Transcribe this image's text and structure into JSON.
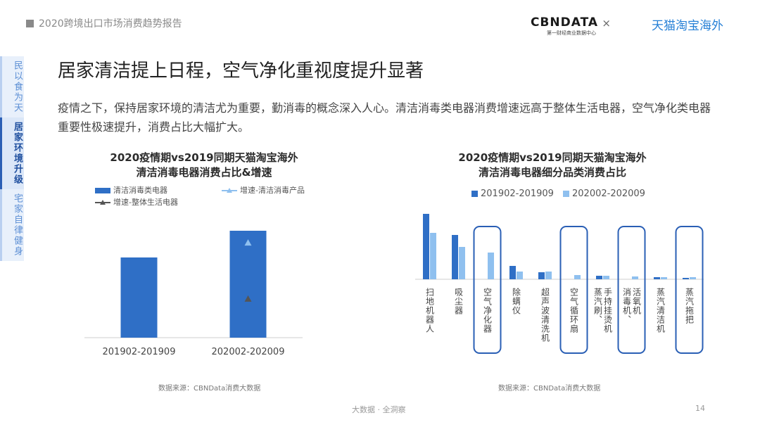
{
  "header": {
    "report_title": "2020跨境出口市场消费趋势报告"
  },
  "brand": {
    "primary": "CBNDATA",
    "primary_sub": "第一财经商业数据中心",
    "separator": "×",
    "partner": "天猫淘宝海外"
  },
  "side_nav": {
    "items": [
      {
        "label": "民以食为天",
        "active": false
      },
      {
        "label": "居家环境升级",
        "active": true
      },
      {
        "label": "宅家自律健身",
        "active": false
      }
    ]
  },
  "headline": "居家清洁提上日程，空气净化重视度提升显著",
  "description": "疫情之下，保持居家环境的清洁尤为重要，勤消毒的概念深入人心。清洁消毒类电器消费增速远高于整体生活电器，空气净化类电器重要性极速提升，消费占比大幅扩大。",
  "colors": {
    "dark_blue": "#2f6fc6",
    "light_blue": "#8fc0ef",
    "gray_tri": "#555555",
    "highlight_border": "#2a5fb5"
  },
  "chart_data": [
    {
      "type": "bar",
      "title_line1": "2020疫情期vs2019同期天猫淘宝海外",
      "title_line2": "清洁消毒电器消费占比&增速",
      "categories": [
        "201902-201909",
        "202002-202009"
      ],
      "series": [
        {
          "name": "清洁消毒类电器",
          "type": "bar",
          "values": [
            0.6,
            0.8
          ],
          "color": "#2f6fc6"
        },
        {
          "name": "增速-清洁消毒产品",
          "type": "marker",
          "values": [
            null,
            0.71
          ],
          "color": "#8fc0ef"
        },
        {
          "name": "增速-整体生活电器",
          "type": "marker",
          "values": [
            null,
            0.29
          ],
          "color": "#555555"
        }
      ],
      "ylim": [
        0,
        1
      ],
      "source": "数据来源：CBNData消费大数据"
    },
    {
      "type": "bar",
      "title_line1": "2020疫情期vs2019同期天猫淘宝海外",
      "title_line2": "清洁消毒电器细分品类消费占比",
      "categories": [
        "扫地机器人",
        "吸尘器",
        "空气净化器",
        "除螨仪",
        "超声波清洗机",
        "空气循环扇",
        "蒸汽刷、手持挂烫机",
        "消毒机、活氧机",
        "蒸汽清洁机",
        "蒸汽拖把"
      ],
      "highlighted": [
        "空气净化器",
        "空气循环扇",
        "消毒机、活氧机",
        "蒸汽拖把"
      ],
      "series": [
        {
          "name": "201902-201909",
          "values": [
            0.93,
            0.63,
            0.0,
            0.19,
            0.1,
            0.0,
            0.05,
            0.0,
            0.03,
            0.02
          ],
          "color": "#2f6fc6"
        },
        {
          "name": "202002-202009",
          "values": [
            0.66,
            0.46,
            0.38,
            0.11,
            0.11,
            0.06,
            0.05,
            0.04,
            0.03,
            0.03
          ],
          "color": "#8fc0ef"
        }
      ],
      "ylim": [
        0,
        1
      ],
      "source": "数据来源：CBNData消费大数据"
    }
  ],
  "footer": {
    "slogan": "大数据 · 全洞察",
    "page_number": "14"
  }
}
